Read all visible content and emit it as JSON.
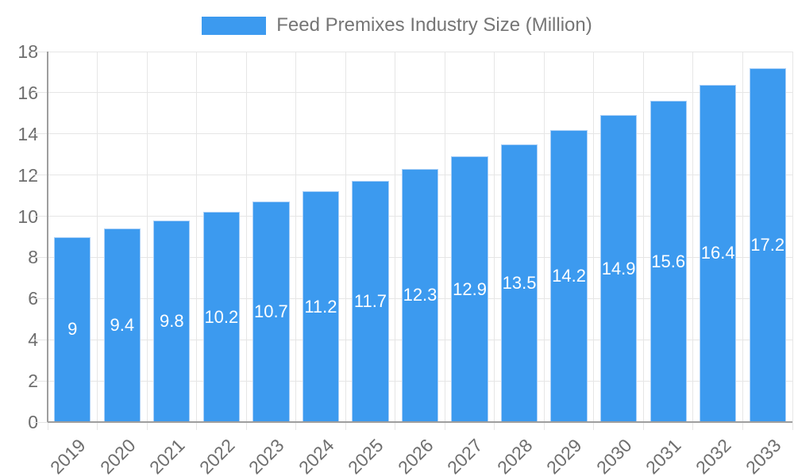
{
  "legend": {
    "label": "Feed Premixes Industry Size (Million)"
  },
  "colors": {
    "bar": "#3c9aef",
    "bar_edge": "#a9cff7",
    "grid": "#e6e6e6",
    "axis": "#9e9e9e",
    "tick_text": "#6e6e6e",
    "legend_text": "#757575",
    "value_text": "#ffffff",
    "background": "#ffffff"
  },
  "chart_data": {
    "type": "bar",
    "title": "Feed Premixes Industry Size (Million)",
    "series_name": "Feed Premixes Industry Size (Million)",
    "categories": [
      "2019",
      "2020",
      "2021",
      "2022",
      "2023",
      "2024",
      "2025",
      "2026",
      "2027",
      "2028",
      "2029",
      "2030",
      "2031",
      "2032",
      "2033"
    ],
    "values": [
      9,
      9.4,
      9.8,
      10.2,
      10.7,
      11.2,
      11.7,
      12.3,
      12.9,
      13.5,
      14.2,
      14.9,
      15.6,
      16.4,
      17.2
    ],
    "value_labels": [
      "9",
      "9.4",
      "9.8",
      "10.2",
      "10.7",
      "11.2",
      "11.7",
      "12.3",
      "12.9",
      "13.5",
      "14.2",
      "14.9",
      "15.6",
      "16.4",
      "17.2"
    ],
    "xlabel": "",
    "ylabel": "",
    "ylim": [
      0,
      18
    ],
    "yticks": [
      0,
      2,
      4,
      6,
      8,
      10,
      12,
      14,
      16,
      18
    ],
    "grid": true,
    "legend_position": "top",
    "value_label_position": "inside-center",
    "xtick_rotation": -45
  }
}
